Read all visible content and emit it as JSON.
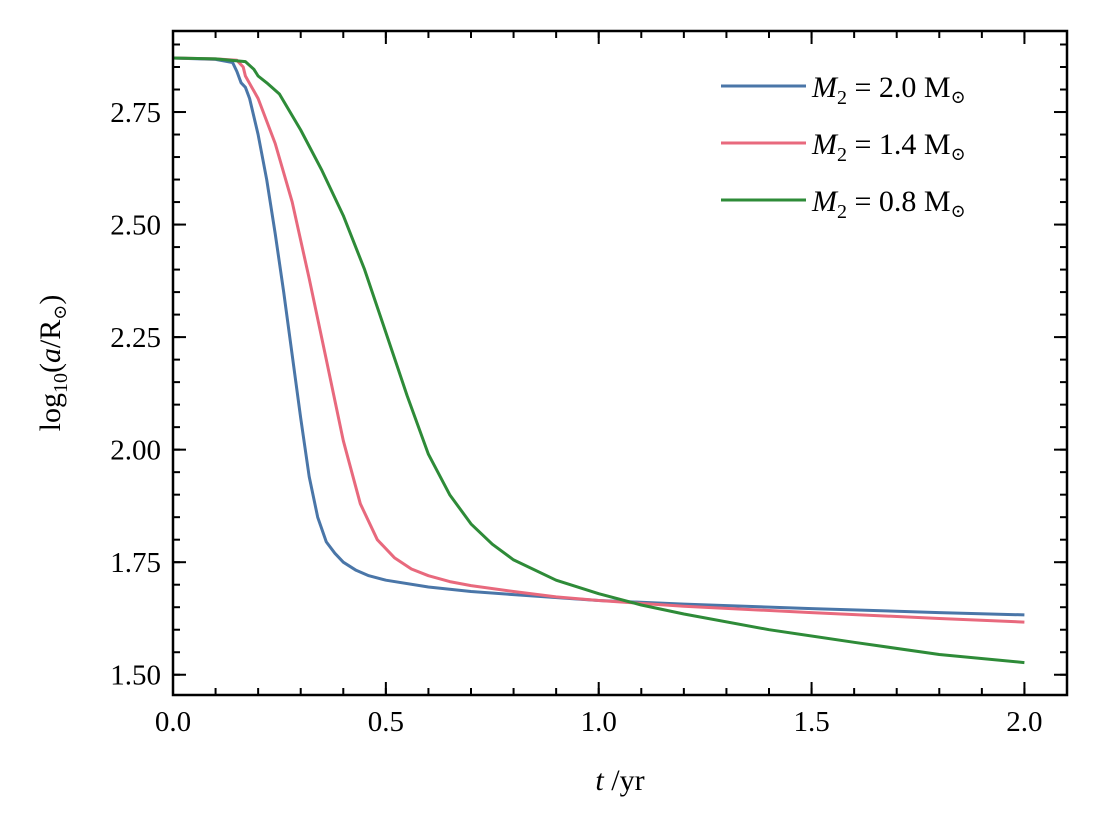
{
  "chart_data": {
    "type": "line",
    "xlabel": {
      "var": "t",
      "unit": " /yr"
    },
    "ylabel": {
      "prefix": "log",
      "sub": "10",
      "open": "(",
      "var": "a",
      "slash": "/R",
      "sym": "⊙",
      "close": ")"
    },
    "xlim": [
      0.0,
      2.1
    ],
    "ylim": [
      1.455,
      2.93
    ],
    "xticks": [
      0.0,
      0.5,
      1.0,
      1.5,
      2.0
    ],
    "xtick_labels": [
      "0.0",
      "0.5",
      "1.0",
      "1.5",
      "2.0"
    ],
    "yticks": [
      1.5,
      1.75,
      2.0,
      2.25,
      2.5,
      2.75
    ],
    "ytick_labels": [
      "1.50",
      "1.75",
      "2.00",
      "2.25",
      "2.50",
      "2.75"
    ],
    "x_minor_step": 0.1,
    "y_minor_step": 0.05,
    "grid": false,
    "legend_position": "top-right",
    "series": [
      {
        "name": "M2 = 2.0 M⊙",
        "legend": {
          "m": "M",
          "sub": "2",
          "eq": " = 2.0 M",
          "sym": "⊙"
        },
        "color": "#4a76a8",
        "x": [
          0.0,
          0.1,
          0.14,
          0.15,
          0.16,
          0.17,
          0.18,
          0.2,
          0.22,
          0.24,
          0.26,
          0.28,
          0.3,
          0.32,
          0.34,
          0.36,
          0.38,
          0.4,
          0.43,
          0.46,
          0.5,
          0.6,
          0.7,
          0.8,
          1.0,
          1.2,
          1.5,
          1.8,
          2.0
        ],
        "y": [
          2.87,
          2.867,
          2.86,
          2.84,
          2.815,
          2.805,
          2.78,
          2.7,
          2.6,
          2.48,
          2.35,
          2.21,
          2.07,
          1.94,
          1.85,
          1.795,
          1.77,
          1.75,
          1.732,
          1.72,
          1.71,
          1.695,
          1.685,
          1.678,
          1.665,
          1.657,
          1.647,
          1.638,
          1.633
        ]
      },
      {
        "name": "M2 = 1.4 M⊙",
        "legend": {
          "m": "M",
          "sub": "2",
          "eq": " = 1.4 M",
          "sym": "⊙"
        },
        "color": "#e8697d",
        "x": [
          0.0,
          0.1,
          0.15,
          0.165,
          0.17,
          0.2,
          0.24,
          0.28,
          0.32,
          0.36,
          0.4,
          0.44,
          0.48,
          0.52,
          0.56,
          0.6,
          0.65,
          0.7,
          0.8,
          0.9,
          1.0,
          1.2,
          1.5,
          1.8,
          2.0
        ],
        "y": [
          2.87,
          2.868,
          2.865,
          2.85,
          2.83,
          2.78,
          2.68,
          2.55,
          2.38,
          2.2,
          2.02,
          1.88,
          1.8,
          1.76,
          1.735,
          1.72,
          1.707,
          1.698,
          1.685,
          1.673,
          1.665,
          1.652,
          1.638,
          1.625,
          1.617
        ]
      },
      {
        "name": "M2 = 0.8 M⊙",
        "legend": {
          "m": "M",
          "sub": "2",
          "eq": " = 0.8 M",
          "sym": "⊙"
        },
        "color": "#2e8b38",
        "x": [
          0.0,
          0.1,
          0.17,
          0.19,
          0.2,
          0.22,
          0.25,
          0.3,
          0.35,
          0.4,
          0.45,
          0.5,
          0.55,
          0.6,
          0.65,
          0.7,
          0.75,
          0.8,
          0.9,
          1.0,
          1.1,
          1.2,
          1.4,
          1.6,
          1.8,
          2.0
        ],
        "y": [
          2.87,
          2.868,
          2.862,
          2.845,
          2.83,
          2.815,
          2.79,
          2.71,
          2.62,
          2.52,
          2.4,
          2.26,
          2.12,
          1.99,
          1.9,
          1.835,
          1.79,
          1.755,
          1.71,
          1.68,
          1.655,
          1.635,
          1.6,
          1.572,
          1.545,
          1.527
        ]
      }
    ]
  }
}
